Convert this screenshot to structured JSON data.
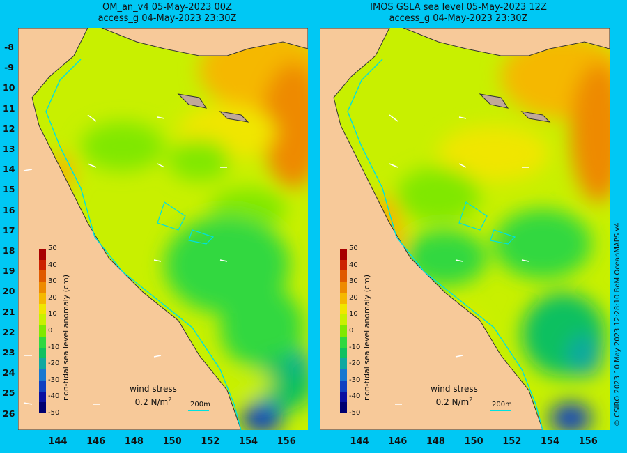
{
  "panels": [
    {
      "title_line1": "OM_an_v4  05-May-2023 00Z",
      "title_line2": "access_g 04-May-2023 23:30Z"
    },
    {
      "title_line1": "IMOS GSLA sea level  05-May-2023 12Z",
      "title_line2": "access_g 04-May-2023 23:30Z"
    }
  ],
  "axes": {
    "y_labels": [
      "-8",
      "-9",
      "10",
      "11",
      "12",
      "13",
      "14",
      "15",
      "16",
      "17",
      "18",
      "19",
      "20",
      "21",
      "22",
      "23",
      "24",
      "25",
      "26"
    ],
    "x_labels": [
      "144",
      "146",
      "148",
      "150",
      "152",
      "154",
      "156"
    ]
  },
  "colorbar": {
    "title": "non-tidal sea level anomaly (cm)",
    "labels": [
      "50",
      "40",
      "30",
      "20",
      "10",
      "0",
      "-10",
      "-20",
      "-30",
      "-40",
      "-50"
    ],
    "colors": [
      "#a80000",
      "#cc2200",
      "#e05a00",
      "#ee8a00",
      "#f5b800",
      "#f0e600",
      "#c8f000",
      "#80e800",
      "#30d840",
      "#10c060",
      "#10a8a0",
      "#1878d0",
      "#1040c0",
      "#0a10a0",
      "#000070"
    ]
  },
  "wind": {
    "label": "wind stress",
    "value": "0.2 N/m",
    "unit_sup": "2"
  },
  "scale_label": "200m",
  "credit": "© CSIRO 2023  10 May 2023 12:28:10 BoM OceanMAPS v4",
  "colors": {
    "background": "#00c8f4",
    "land": "#f7c999",
    "contour": "#00e0e0"
  }
}
